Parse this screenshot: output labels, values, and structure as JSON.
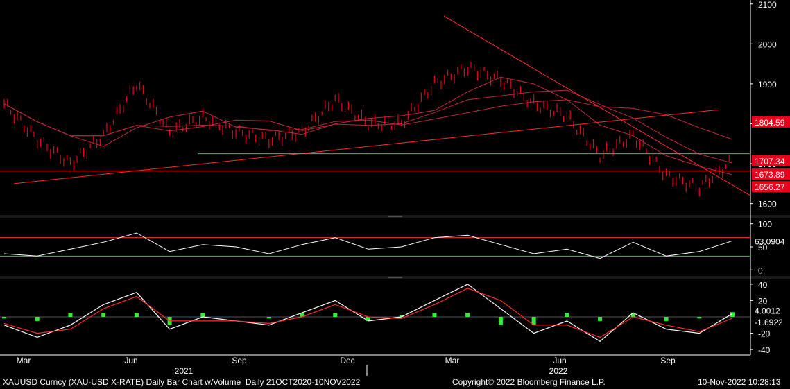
{
  "footer": {
    "left": "XAUUSD Curncy (XAU-USD X-RATE) Daily Bar Chart w/Volume  Daily 21OCT2020-10NOV2022",
    "center": "Copyright© 2022 Bloomberg Finance L.P.",
    "right": "10-Nov-2022 10:28:13"
  },
  "colors": {
    "background": "#000000",
    "price_bars": "#e8001c",
    "moving_averages": "#c0283a",
    "trendline": "#ff2a2a",
    "support_green": "#33cc33",
    "rsi_line": "#000000",
    "rsi_overbought_fill": "#f4a0a0",
    "rsi_oversold_fill": "#a0e8a0",
    "macd_hist": "#33ee33"
  },
  "chart_data": [
    {
      "type": "bar",
      "name": "price",
      "y_axis_side": "right",
      "ylim": [
        1575,
        2110
      ],
      "ticks": [
        1600,
        1700,
        1800,
        1900,
        2000,
        2100
      ],
      "x_month_labels": [
        "Mar",
        "Jun",
        "Sep",
        "Dec",
        "Mar",
        "Jun",
        "Sep"
      ],
      "x_year_labels": [
        "2021",
        "2022"
      ],
      "x": [
        "2021-01",
        "2021-02",
        "2021-03",
        "2021-04",
        "2021-05",
        "2021-06",
        "2021-07",
        "2021-08",
        "2021-09",
        "2021-10",
        "2021-11",
        "2021-12",
        "2022-01",
        "2022-02",
        "2022-03",
        "2022-04",
        "2022-05",
        "2022-06",
        "2022-07",
        "2022-08",
        "2022-09",
        "2022-10",
        "2022-11"
      ],
      "close": [
        1850,
        1760,
        1700,
        1770,
        1900,
        1780,
        1815,
        1780,
        1760,
        1780,
        1860,
        1800,
        1800,
        1900,
        1940,
        1910,
        1850,
        1820,
        1720,
        1770,
        1670,
        1640,
        1707
      ],
      "price_labels": [
        {
          "value": 1804.59,
          "text": "1804.59",
          "color": "#e8001c"
        },
        {
          "value": 1707.34,
          "text": "1707.34",
          "color": "#e8001c"
        },
        {
          "value": 1673.89,
          "text": "1673.89",
          "color": "#e8001c"
        },
        {
          "value": 1656.27,
          "text": "1656.27",
          "color": "#e8001c"
        }
      ],
      "horizontal_lines": [
        {
          "value": 1725,
          "color": "#33cc33"
        },
        {
          "value": 1682,
          "color": "#ff2a2a"
        }
      ]
    },
    {
      "type": "line",
      "name": "RSI",
      "y_axis_side": "right",
      "ylim": [
        -10,
        110
      ],
      "ticks": [
        0,
        50,
        100
      ],
      "levels": {
        "overbought": 70,
        "oversold": 30
      },
      "last_value_label": "63.0904",
      "x": [
        "2021-01",
        "2021-02",
        "2021-03",
        "2021-04",
        "2021-05",
        "2021-06",
        "2021-07",
        "2021-08",
        "2021-09",
        "2021-10",
        "2021-11",
        "2021-12",
        "2022-01",
        "2022-02",
        "2022-03",
        "2022-04",
        "2022-05",
        "2022-06",
        "2022-07",
        "2022-08",
        "2022-09",
        "2022-10",
        "2022-11"
      ],
      "values": [
        35,
        30,
        45,
        60,
        80,
        40,
        55,
        50,
        35,
        55,
        70,
        45,
        50,
        70,
        75,
        55,
        35,
        45,
        25,
        60,
        30,
        40,
        63
      ]
    },
    {
      "type": "line",
      "name": "MACD",
      "y_axis_side": "right",
      "ylim": [
        -45,
        45
      ],
      "ticks": [
        -40,
        -20,
        20,
        40
      ],
      "last_value_labels": [
        {
          "value": 4.0012,
          "text": "4.0012",
          "color": "#ffffff"
        },
        {
          "value": -1.6922,
          "text": "-1.6922",
          "color": "#e8001c"
        }
      ],
      "x": [
        "2021-01",
        "2021-02",
        "2021-03",
        "2021-04",
        "2021-05",
        "2021-06",
        "2021-07",
        "2021-08",
        "2021-09",
        "2021-10",
        "2021-11",
        "2021-12",
        "2022-01",
        "2022-02",
        "2022-03",
        "2022-04",
        "2022-05",
        "2022-06",
        "2022-07",
        "2022-08",
        "2022-09",
        "2022-10",
        "2022-11"
      ],
      "macd": [
        -10,
        -25,
        -10,
        15,
        30,
        -15,
        0,
        -5,
        -10,
        5,
        20,
        -5,
        0,
        20,
        40,
        10,
        -20,
        -5,
        -30,
        5,
        -15,
        -20,
        4
      ],
      "signal": [
        -8,
        -20,
        -15,
        10,
        25,
        -5,
        -5,
        -5,
        -8,
        0,
        15,
        0,
        -2,
        15,
        35,
        20,
        -10,
        -10,
        -25,
        0,
        -10,
        -18,
        -1.7
      ]
    }
  ]
}
